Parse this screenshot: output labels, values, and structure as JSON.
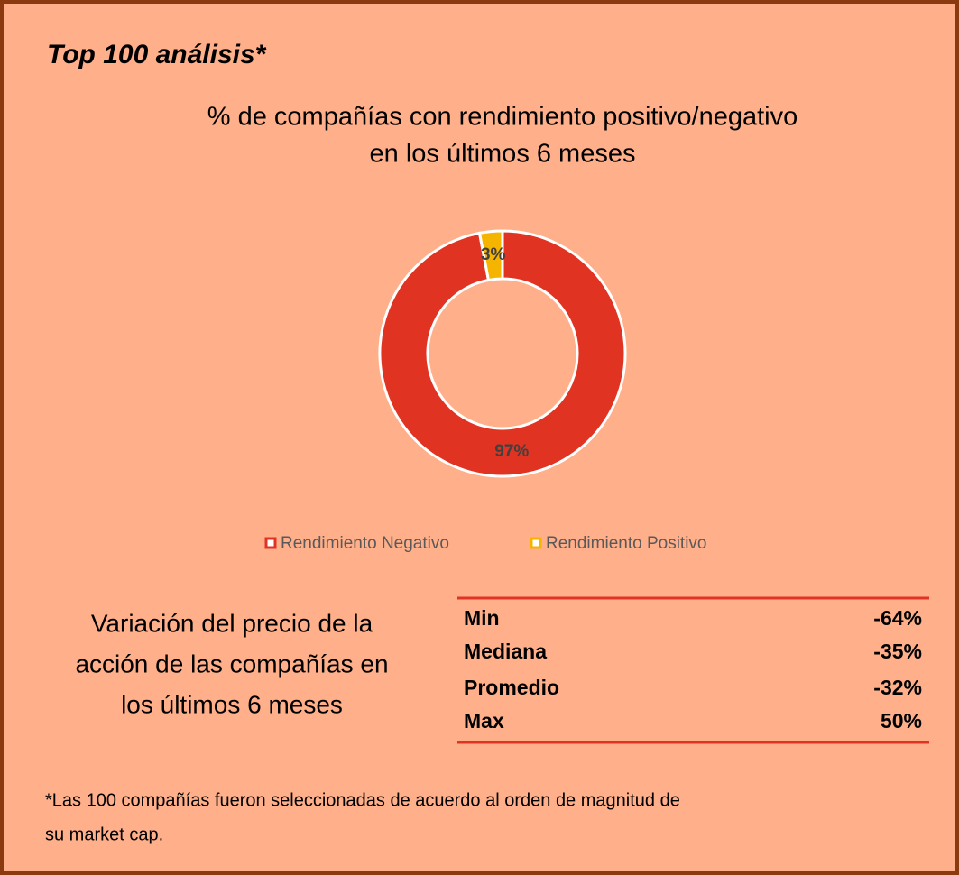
{
  "header": {
    "title": "Top 100 análisis*"
  },
  "chart_data": {
    "type": "donut",
    "title": [
      "% de compañías con rendimiento positivo/negativo",
      "en los últimos 6 meses"
    ],
    "categories": [
      "Rendimiento Negativo",
      "Rendimiento Positivo"
    ],
    "values": [
      97,
      3
    ],
    "value_labels": [
      "97%",
      "3%"
    ],
    "colors": [
      "#e03321",
      "#f5b400"
    ],
    "legend": "bottom"
  },
  "stats": {
    "title": [
      "Variación del precio de la",
      "acción de las compañías en",
      "los últimos 6 meses"
    ],
    "rows": [
      [
        "Min",
        "-64%"
      ],
      [
        "Mediana",
        "-35%"
      ],
      [
        "Promedio",
        "-32%"
      ],
      [
        "Max",
        "50%"
      ]
    ]
  },
  "footnote": [
    "*Las 100 compañías fueron seleccionadas de acuerdo al orden de magnitud de",
    "su market cap."
  ]
}
